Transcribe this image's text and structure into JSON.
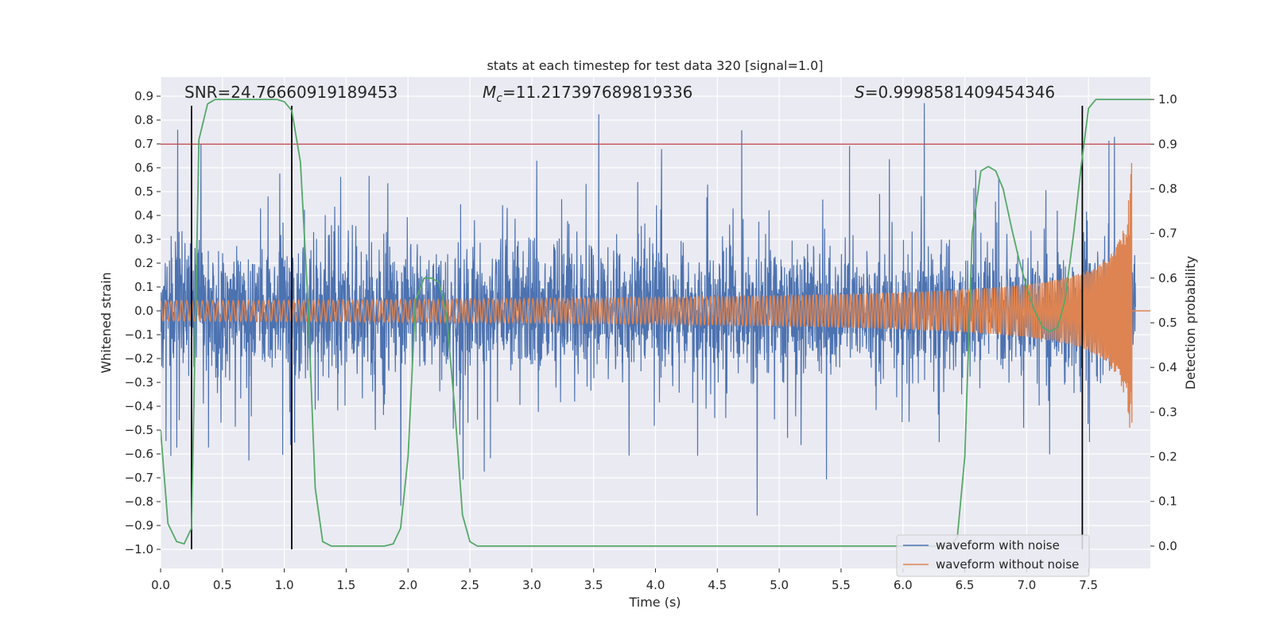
{
  "chart_data": {
    "type": "line",
    "title": "stats at each timestep for test data 320 [signal=1.0]",
    "xlabel": "Time (s)",
    "ylabel": "Whitened strain",
    "y2label": "Detection probability",
    "xlim": [
      0.0,
      8.0
    ],
    "ylim": [
      -1.08,
      0.98
    ],
    "y2lim": [
      -0.05,
      1.05
    ],
    "x_ticks": [
      0.0,
      0.5,
      1.0,
      1.5,
      2.0,
      2.5,
      3.0,
      3.5,
      4.0,
      4.5,
      5.0,
      5.5,
      6.0,
      6.5,
      7.0,
      7.5
    ],
    "x_tick_labels": [
      "0.0",
      "0.5",
      "1.0",
      "1.5",
      "2.0",
      "2.5",
      "3.0",
      "3.5",
      "4.0",
      "4.5",
      "5.0",
      "5.5",
      "6.0",
      "6.5",
      "7.0",
      "7.5"
    ],
    "y_ticks": [
      0.9,
      0.8,
      0.7,
      0.6,
      0.5,
      0.4,
      0.3,
      0.2,
      0.1,
      0.0,
      -0.1,
      -0.2,
      -0.3,
      -0.4,
      -0.5,
      -0.6,
      -0.7,
      -0.8,
      -0.9,
      -1.0
    ],
    "y_tick_labels": [
      "0.9",
      "0.8",
      "0.7",
      "0.6",
      "0.5",
      "0.4",
      "0.3",
      "0.2",
      "0.1",
      "0.0",
      "−0.1",
      "−0.2",
      "−0.3",
      "−0.4",
      "−0.5",
      "−0.6",
      "−0.7",
      "−0.8",
      "−0.9",
      "−1.0"
    ],
    "y2_ticks": [
      1.0,
      0.9,
      0.8,
      0.7,
      0.6,
      0.5,
      0.4,
      0.3,
      0.2,
      0.1,
      0.0
    ],
    "y2_tick_labels": [
      "1.0",
      "0.9",
      "0.8",
      "0.7",
      "0.6",
      "0.5",
      "0.4",
      "0.3",
      "0.2",
      "0.1",
      "0.0"
    ],
    "annotations": {
      "snr": "SNR=24.76660919189453",
      "mc_symbol": "M",
      "mc_sub": "c",
      "mc_value": "=11.217397689819336",
      "s_symbol": "S",
      "s_value": "=0.9998581409454346"
    },
    "threshold": {
      "axis": "y2",
      "value": 0.9,
      "color": "#c44e52"
    },
    "vlines": [
      0.25,
      1.06,
      7.45
    ],
    "vline_range": [
      -1.0,
      0.86
    ],
    "noise_envelope": {
      "base_amplitude": 0.32,
      "burst_max": 0.99,
      "x_end": 7.88
    },
    "chirp": {
      "amp_start": 0.012,
      "amp_end": 0.65,
      "x_end": 7.85,
      "post_value": 0.0,
      "x_max": 8.0
    },
    "detection_probability": {
      "x": [
        0.0,
        0.06,
        0.13,
        0.19,
        0.25,
        0.31,
        0.38,
        0.44,
        0.5,
        0.56,
        0.63,
        0.69,
        0.75,
        0.81,
        0.88,
        0.94,
        1.0,
        1.06,
        1.13,
        1.19,
        1.25,
        1.31,
        1.38,
        1.44,
        1.5,
        1.63,
        1.75,
        1.81,
        1.88,
        1.94,
        2.0,
        2.06,
        2.13,
        2.19,
        2.25,
        2.31,
        2.38,
        2.44,
        2.5,
        2.56,
        2.63,
        2.75,
        3.0,
        4.0,
        5.0,
        5.75,
        6.0,
        6.38,
        6.44,
        6.5,
        6.56,
        6.63,
        6.69,
        6.75,
        6.81,
        6.88,
        6.94,
        7.0,
        7.06,
        7.13,
        7.19,
        7.25,
        7.31,
        7.38,
        7.44,
        7.5,
        7.56,
        7.63,
        7.69,
        7.75,
        7.81,
        7.88,
        7.94,
        8.0
      ],
      "y": [
        0.26,
        0.05,
        0.01,
        0.005,
        0.04,
        0.91,
        0.99,
        1.0,
        1.0,
        1.0,
        1.0,
        1.0,
        1.0,
        1.0,
        1.0,
        1.0,
        0.995,
        0.975,
        0.86,
        0.55,
        0.13,
        0.01,
        0.0,
        0.0,
        0.0,
        0.0,
        0.0,
        0.0,
        0.005,
        0.04,
        0.2,
        0.55,
        0.6,
        0.6,
        0.59,
        0.52,
        0.3,
        0.07,
        0.01,
        0.0,
        0.0,
        0.0,
        0.0,
        0.0,
        0.0,
        0.0,
        0.0,
        0.0,
        0.02,
        0.2,
        0.7,
        0.84,
        0.85,
        0.84,
        0.8,
        0.71,
        0.64,
        0.58,
        0.53,
        0.49,
        0.48,
        0.49,
        0.55,
        0.7,
        0.85,
        0.98,
        1.0,
        1.0,
        1.0,
        1.0,
        1.0,
        1.0,
        1.0,
        1.0
      ]
    },
    "legend": [
      {
        "label": "waveform with noise",
        "color": "#4c72b0"
      },
      {
        "label": "waveform without noise",
        "color": "#dd8452"
      }
    ],
    "colors": {
      "plot_background": "#eaeaf2",
      "grid": "#ffffff",
      "noise": "#4c72b0",
      "clean": "#dd8452",
      "probability": "#55a868",
      "vline": "#000000",
      "text": "#262626"
    },
    "grid": true,
    "legend_position": "lower right"
  }
}
